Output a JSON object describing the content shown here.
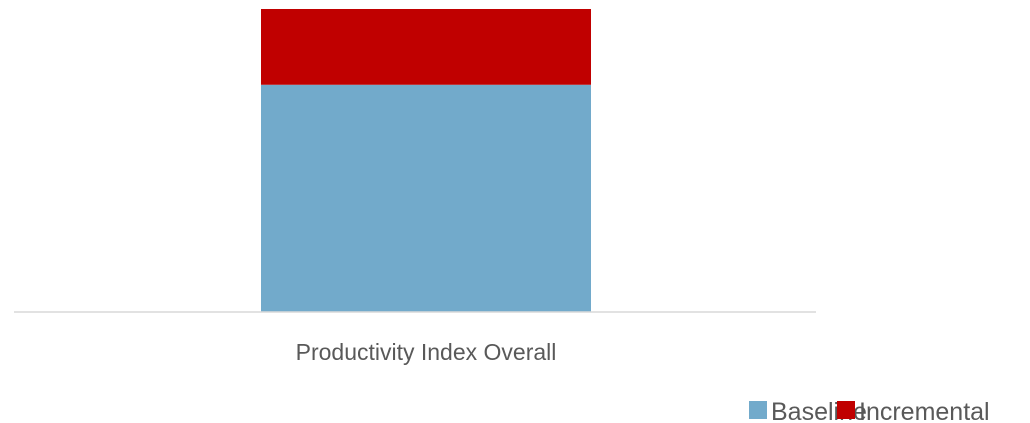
{
  "chart_data": {
    "type": "bar",
    "stacked": true,
    "categories": [
      "Productivity Index Overall"
    ],
    "series": [
      {
        "name": "Baseline",
        "values": [
          75
        ],
        "color": "#72aacb"
      },
      {
        "name": "Incremental",
        "values": [
          25
        ],
        "color": "#c00000"
      }
    ],
    "ylim": [
      0,
      100
    ],
    "grid": false,
    "legend": "bottom-right",
    "axis_color": "#d9d9d9"
  }
}
